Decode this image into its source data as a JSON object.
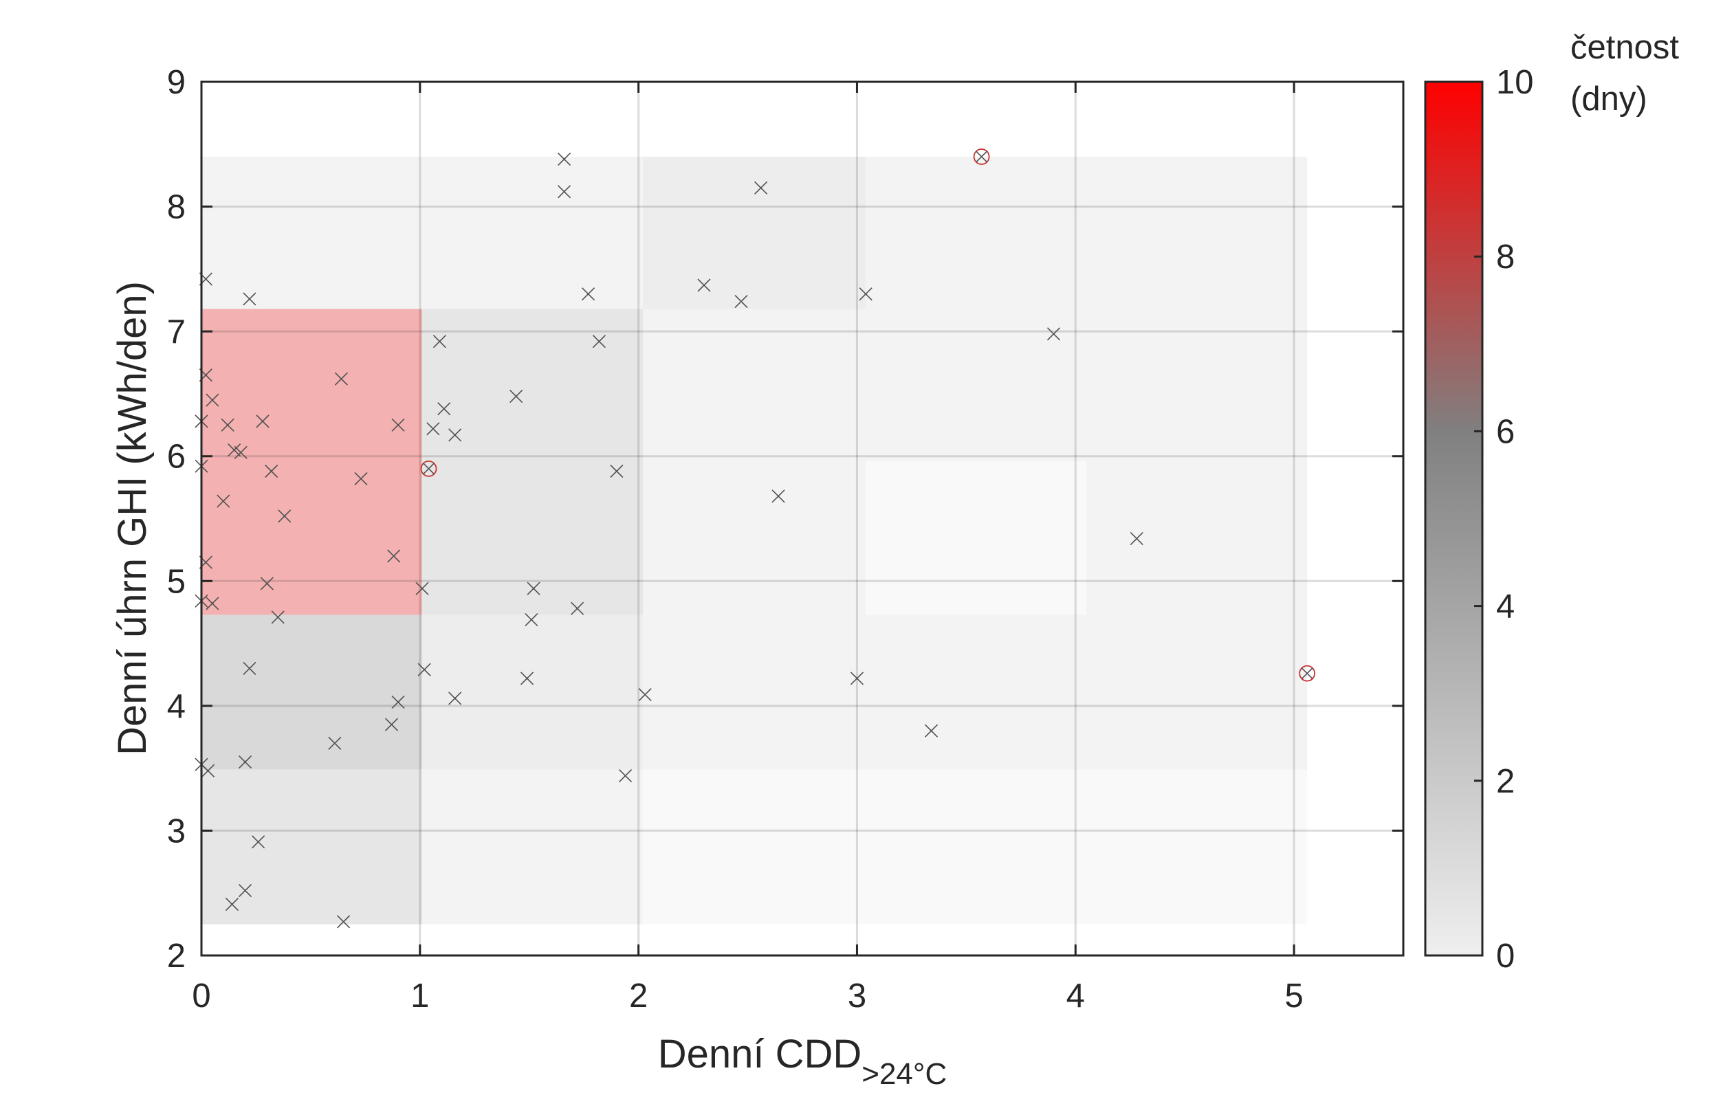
{
  "chart_data": {
    "type": "heatmap",
    "xlabel": "Denní CDD",
    "xlabel_subscript": ">24°C",
    "ylabel": "Denní úhrn GHI (kWh/den)",
    "xlim": [
      0,
      5.5
    ],
    "ylim": [
      2,
      9
    ],
    "xticks": [
      "0",
      "1",
      "2",
      "3",
      "4",
      "5"
    ],
    "yticks": [
      "2",
      "3",
      "4",
      "5",
      "6",
      "7",
      "8",
      "9"
    ],
    "grid": true,
    "colorbar": {
      "title_line1": "četnost",
      "title_line2": "(dny)",
      "min": 0,
      "max": 10,
      "ticks": [
        "0",
        "2",
        "4",
        "6",
        "8",
        "10"
      ],
      "colors": [
        "#efefef",
        "#808080",
        "#ff0000"
      ]
    },
    "bins": {
      "x_edges": [
        0,
        1.01,
        2.02,
        3.04,
        4.05,
        5.06
      ],
      "y_edges": [
        2.25,
        3.49,
        4.73,
        5.96,
        7.18,
        8.4
      ],
      "counts": [
        [
          3,
          1,
          0,
          0,
          0
        ],
        [
          5,
          2,
          1,
          1,
          1
        ],
        [
          9,
          3,
          1,
          0,
          1
        ],
        [
          9,
          3,
          1,
          1,
          1
        ],
        [
          1,
          1,
          2,
          1,
          1
        ]
      ]
    },
    "points": [
      {
        "x": 0.02,
        "y": 7.42
      },
      {
        "x": 0.22,
        "y": 7.26
      },
      {
        "x": 0.64,
        "y": 6.62
      },
      {
        "x": 0.02,
        "y": 6.65
      },
      {
        "x": 0.05,
        "y": 6.45
      },
      {
        "x": 0.0,
        "y": 6.28
      },
      {
        "x": 0.12,
        "y": 6.25
      },
      {
        "x": 0.28,
        "y": 6.28
      },
      {
        "x": 0.9,
        "y": 6.25
      },
      {
        "x": 0.15,
        "y": 6.05
      },
      {
        "x": 0.18,
        "y": 6.03
      },
      {
        "x": 0.0,
        "y": 5.92
      },
      {
        "x": 0.32,
        "y": 5.88
      },
      {
        "x": 0.73,
        "y": 5.82
      },
      {
        "x": 0.1,
        "y": 5.64
      },
      {
        "x": 0.38,
        "y": 5.52
      },
      {
        "x": 0.02,
        "y": 5.15
      },
      {
        "x": 0.88,
        "y": 5.2
      },
      {
        "x": 0.3,
        "y": 4.98
      },
      {
        "x": 0.0,
        "y": 4.84
      },
      {
        "x": 0.05,
        "y": 4.82
      },
      {
        "x": 0.35,
        "y": 4.71
      },
      {
        "x": 0.22,
        "y": 4.3
      },
      {
        "x": 1.02,
        "y": 4.29
      },
      {
        "x": 0.9,
        "y": 4.03
      },
      {
        "x": 0.87,
        "y": 3.85
      },
      {
        "x": 0.61,
        "y": 3.7
      },
      {
        "x": 0.2,
        "y": 3.55
      },
      {
        "x": 0.0,
        "y": 3.53
      },
      {
        "x": 0.03,
        "y": 3.48
      },
      {
        "x": 0.26,
        "y": 2.91
      },
      {
        "x": 0.2,
        "y": 2.52
      },
      {
        "x": 0.14,
        "y": 2.41
      },
      {
        "x": 0.65,
        "y": 2.27
      },
      {
        "x": 1.66,
        "y": 8.38
      },
      {
        "x": 1.66,
        "y": 8.12
      },
      {
        "x": 2.56,
        "y": 8.15
      },
      {
        "x": 1.77,
        "y": 7.3
      },
      {
        "x": 2.3,
        "y": 7.37
      },
      {
        "x": 2.47,
        "y": 7.24
      },
      {
        "x": 3.04,
        "y": 7.3
      },
      {
        "x": 1.09,
        "y": 6.92
      },
      {
        "x": 1.82,
        "y": 6.92
      },
      {
        "x": 3.9,
        "y": 6.98
      },
      {
        "x": 1.44,
        "y": 6.48
      },
      {
        "x": 1.11,
        "y": 6.38
      },
      {
        "x": 1.06,
        "y": 6.22
      },
      {
        "x": 1.16,
        "y": 6.17
      },
      {
        "x": 1.9,
        "y": 5.88
      },
      {
        "x": 2.64,
        "y": 5.68
      },
      {
        "x": 4.28,
        "y": 5.34
      },
      {
        "x": 1.01,
        "y": 4.94
      },
      {
        "x": 1.52,
        "y": 4.94
      },
      {
        "x": 1.72,
        "y": 4.78
      },
      {
        "x": 1.51,
        "y": 4.69
      },
      {
        "x": 1.49,
        "y": 4.22
      },
      {
        "x": 3.0,
        "y": 4.22
      },
      {
        "x": 1.16,
        "y": 4.06
      },
      {
        "x": 2.03,
        "y": 4.09
      },
      {
        "x": 3.34,
        "y": 3.8
      },
      {
        "x": 1.94,
        "y": 3.44
      }
    ],
    "highlighted_points": [
      {
        "x": 3.57,
        "y": 8.4
      },
      {
        "x": 1.04,
        "y": 5.9
      },
      {
        "x": 5.06,
        "y": 4.26
      }
    ]
  }
}
